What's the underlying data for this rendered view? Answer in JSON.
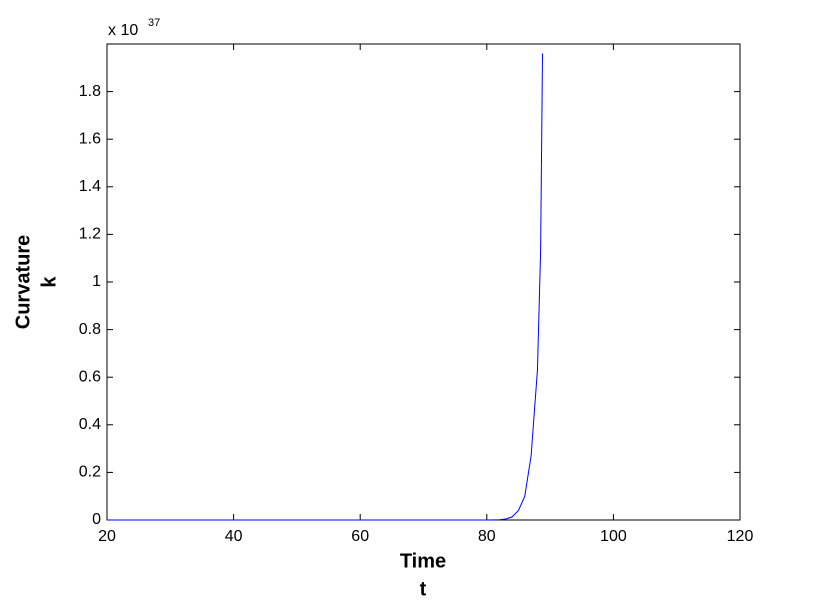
{
  "chart_data": {
    "type": "line",
    "xlabel": [
      "Time",
      "t"
    ],
    "ylabel": [
      "Curvature",
      "k"
    ],
    "y_multiplier": {
      "base": "x 10",
      "exponent": "37"
    },
    "x": [
      20,
      40,
      60,
      80,
      82,
      83,
      84,
      85,
      86,
      87,
      88,
      88.5,
      88.8
    ],
    "series": [
      {
        "color": "#0000ff",
        "values": [
          0,
          0,
          0,
          0,
          0.001,
          0.004,
          0.013,
          0.04,
          0.1,
          0.27,
          0.63,
          1.13,
          1.96
        ]
      }
    ],
    "xlim": [
      20,
      120
    ],
    "ylim": [
      0,
      2
    ],
    "xticks": [
      20,
      40,
      60,
      80,
      100,
      120
    ],
    "yticks": [
      0,
      0.2,
      0.4,
      0.6,
      0.8,
      1,
      1.2,
      1.4,
      1.6,
      1.8
    ]
  }
}
